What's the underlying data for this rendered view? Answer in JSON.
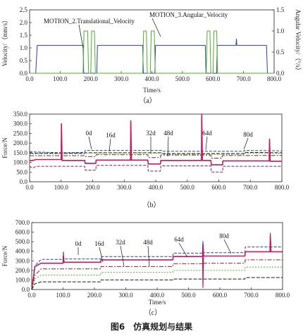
{
  "caption": "图6　仿真规划与结果",
  "chart_data": [
    {
      "type": "line",
      "panel_label": "（a）",
      "xlabel": "Time/s",
      "ylabel": "Velocity/（mm/s）",
      "ylabel_right": "Angular Velocity/（°/s）",
      "xlim": [
        0,
        800
      ],
      "ylim": [
        0,
        2.5
      ],
      "ylim_right": [
        0,
        1.5
      ],
      "xticks": [
        "0.0",
        "100.0",
        "200.0",
        "300.0",
        "400.0",
        "500.0",
        "600.0",
        "700.0",
        "800.0"
      ],
      "yticks": [
        "0.0",
        "0.5",
        "1.0",
        "1.5",
        "2.0",
        "2.5"
      ],
      "yticks_right": [
        "0.0",
        "0.5",
        "1.0",
        "1.5"
      ],
      "annotations": [
        "MOTION_2.Translational_Velocity",
        "MOTION_3.Angular_Velocity"
      ],
      "series": [
        {
          "name": "MOTION_2.Translational_Velocity",
          "color": "#2c3fb0",
          "points": [
            [
              0,
              0
            ],
            [
              20,
              0
            ],
            [
              25,
              1.1
            ],
            [
              175,
              1.1
            ],
            [
              177,
              0
            ],
            [
              220,
              0
            ],
            [
              222,
              1.1
            ],
            [
              370,
              1.1
            ],
            [
              372,
              0
            ],
            [
              410,
              0
            ],
            [
              412,
              1.1
            ],
            [
              575,
              1.1
            ],
            [
              577,
              0
            ],
            [
              612,
              0
            ],
            [
              614,
              1.1
            ],
            [
              675,
              1.1
            ],
            [
              677,
              1.35
            ],
            [
              678,
              1.1
            ],
            [
              775,
              1.1
            ],
            [
              778,
              0
            ],
            [
              800,
              0
            ]
          ]
        },
        {
          "name": "MOTION_3.Angular_Velocity",
          "axis": "right",
          "color": "#4caf2a",
          "points": [
            [
              0,
              0
            ],
            [
              175,
              0
            ],
            [
              178,
              1.0
            ],
            [
              190,
              1.0
            ],
            [
              193,
              0
            ],
            [
              200,
              0
            ],
            [
              203,
              1.0
            ],
            [
              212,
              1.0
            ],
            [
              215,
              0
            ],
            [
              370,
              0
            ],
            [
              373,
              1.0
            ],
            [
              382,
              1.0
            ],
            [
              385,
              0
            ],
            [
              395,
              0
            ],
            [
              398,
              1.0
            ],
            [
              408,
              1.0
            ],
            [
              411,
              0
            ],
            [
              578,
              0
            ],
            [
              581,
              1.0
            ],
            [
              590,
              1.0
            ],
            [
              593,
              0
            ],
            [
              600,
              0
            ],
            [
              603,
              1.0
            ],
            [
              612,
              1.0
            ],
            [
              615,
              0
            ],
            [
              800,
              0
            ]
          ]
        }
      ]
    },
    {
      "type": "line",
      "panel_label": "（b）",
      "xlabel": "",
      "ylabel": "Force/N",
      "xlim": [
        0,
        800
      ],
      "ylim": [
        0,
        350
      ],
      "xticks": [
        "0.0",
        "100.0",
        "200.0",
        "300.0",
        "400.0",
        "500.0",
        "600.0",
        "700.0",
        "800.0"
      ],
      "yticks": [
        "0.0",
        "50.0",
        "100.0",
        "150.0",
        "200.0",
        "250.0",
        "300.0",
        "350.0"
      ],
      "annotations": [
        "0d",
        "16d",
        "32d",
        "48d",
        "64d",
        "80d"
      ],
      "series": [
        {
          "color": "#2c3fb0",
          "dash": "4,2",
          "points": [
            [
              0,
              155
            ],
            [
              100,
              150
            ],
            [
              175,
              152
            ],
            [
              176,
              162
            ],
            [
              420,
              162
            ],
            [
              421,
              158
            ],
            [
              680,
              158
            ],
            [
              681,
              162
            ],
            [
              800,
              160
            ]
          ]
        },
        {
          "color": "#1a1a1a",
          "dash": "5,2",
          "points": [
            [
              0,
              148
            ],
            [
              175,
              148
            ],
            [
              176,
              150
            ],
            [
              420,
              150
            ],
            [
              421,
              146
            ],
            [
              680,
              146
            ],
            [
              681,
              152
            ],
            [
              800,
              150
            ]
          ]
        },
        {
          "color": "#4caf2a",
          "dash": "2,2",
          "points": [
            [
              0,
              145
            ],
            [
              175,
              145
            ],
            [
              176,
              148
            ],
            [
              420,
              148
            ],
            [
              421,
              142
            ],
            [
              680,
              142
            ],
            [
              681,
              148
            ],
            [
              800,
              146
            ]
          ]
        },
        {
          "color": "#8b2020",
          "dash": "6,2,2,2",
          "points": [
            [
              0,
              135
            ],
            [
              175,
              135
            ],
            [
              176,
              130
            ],
            [
              210,
              130
            ],
            [
              211,
              140
            ],
            [
              375,
              140
            ],
            [
              376,
              125
            ],
            [
              415,
              125
            ],
            [
              416,
              138
            ],
            [
              575,
              138
            ],
            [
              576,
              122
            ],
            [
              610,
              122
            ],
            [
              611,
              136
            ],
            [
              800,
              136
            ]
          ]
        },
        {
          "color": "#c21a5e",
          "width": 1.6,
          "points": [
            [
              0,
              110
            ],
            [
              10,
              110
            ],
            [
              20,
              115
            ],
            [
              100,
              115
            ],
            [
              101,
              300
            ],
            [
              103,
              110
            ],
            [
              175,
              110
            ],
            [
              176,
              95
            ],
            [
              210,
              95
            ],
            [
              211,
              112
            ],
            [
              320,
              112
            ],
            [
              321,
              315
            ],
            [
              323,
              112
            ],
            [
              375,
              112
            ],
            [
              376,
              92
            ],
            [
              415,
              92
            ],
            [
              416,
              110
            ],
            [
              545,
              110
            ],
            [
              546,
              350
            ],
            [
              548,
              110
            ],
            [
              575,
              110
            ],
            [
              576,
              88
            ],
            [
              612,
              88
            ],
            [
              613,
              108
            ],
            [
              760,
              108
            ],
            [
              761,
              220
            ],
            [
              763,
              106
            ],
            [
              800,
              106
            ]
          ]
        },
        {
          "color": "#7a1a9a",
          "dash": "4,2",
          "points": [
            [
              0,
              80
            ],
            [
              10,
              70
            ],
            [
              20,
              80
            ],
            [
              175,
              80
            ],
            [
              176,
              60
            ],
            [
              210,
              60
            ],
            [
              211,
              85
            ],
            [
              375,
              85
            ],
            [
              376,
              55
            ],
            [
              415,
              55
            ],
            [
              416,
              82
            ],
            [
              575,
              82
            ],
            [
              576,
              50
            ],
            [
              612,
              50
            ],
            [
              613,
              80
            ],
            [
              800,
              80
            ]
          ]
        }
      ]
    },
    {
      "type": "line",
      "panel_label": "（c）",
      "xlabel": "Time/s",
      "ylabel": "Force/N",
      "xlim": [
        0,
        800
      ],
      "ylim": [
        0,
        700
      ],
      "xticks": [
        "0.0",
        "100.0",
        "200.0",
        "300.0",
        "400.0",
        "500.0",
        "600.0",
        "700.0",
        "800.0"
      ],
      "yticks": [
        "0.0",
        "100.0",
        "200.0",
        "300.0",
        "400.0",
        "500.0",
        "600.0",
        "700.0"
      ],
      "annotations": [
        "0d",
        "16d",
        "32d",
        "48d",
        "64d",
        "80d"
      ],
      "series": [
        {
          "color": "#2c3fb0",
          "dash": "4,2",
          "points": [
            [
              0,
              0
            ],
            [
              10,
              250
            ],
            [
              30,
              315
            ],
            [
              100,
              315
            ],
            [
              101,
              400
            ],
            [
              103,
              320
            ],
            [
              220,
              320
            ],
            [
              221,
              345
            ],
            [
              450,
              345
            ],
            [
              451,
              380
            ],
            [
              545,
              380
            ],
            [
              546,
              505
            ],
            [
              548,
              385
            ],
            [
              680,
              385
            ],
            [
              681,
              445
            ],
            [
              760,
              445
            ],
            [
              761,
              600
            ],
            [
              763,
              445
            ],
            [
              800,
              445
            ]
          ]
        },
        {
          "color": "#c21a5e",
          "width": 1.6,
          "points": [
            [
              0,
              0
            ],
            [
              10,
              240
            ],
            [
              30,
              275
            ],
            [
              100,
              275
            ],
            [
              101,
              360
            ],
            [
              103,
              285
            ],
            [
              220,
              285
            ],
            [
              221,
              310
            ],
            [
              450,
              310
            ],
            [
              451,
              345
            ],
            [
              545,
              345
            ],
            [
              546,
              480
            ],
            [
              548,
              350
            ],
            [
              680,
              350
            ],
            [
              681,
              395
            ],
            [
              760,
              395
            ],
            [
              761,
              560
            ],
            [
              763,
              395
            ],
            [
              800,
              395
            ]
          ]
        },
        {
          "color": "#8b2020",
          "dash": "6,2,2,2",
          "points": [
            [
              0,
              0
            ],
            [
              10,
              150
            ],
            [
              30,
              215
            ],
            [
              220,
              215
            ],
            [
              221,
              240
            ],
            [
              450,
              240
            ],
            [
              451,
              270
            ],
            [
              545,
              270
            ],
            [
              546,
              200
            ],
            [
              548,
              275
            ],
            [
              680,
              275
            ],
            [
              681,
              310
            ],
            [
              800,
              310
            ]
          ]
        },
        {
          "color": "#4caf2a",
          "dash": "2,2",
          "points": [
            [
              0,
              0
            ],
            [
              10,
              110
            ],
            [
              30,
              150
            ],
            [
              220,
              150
            ],
            [
              221,
              180
            ],
            [
              450,
              180
            ],
            [
              451,
              200
            ],
            [
              680,
              200
            ],
            [
              681,
              235
            ],
            [
              800,
              235
            ]
          ]
        },
        {
          "color": "#1a1a1a",
          "dash": "5,2",
          "points": [
            [
              0,
              0
            ],
            [
              10,
              60
            ],
            [
              30,
              80
            ],
            [
              220,
              80
            ],
            [
              221,
              100
            ],
            [
              450,
              100
            ],
            [
              451,
              110
            ],
            [
              680,
              110
            ],
            [
              681,
              125
            ],
            [
              800,
              125
            ]
          ]
        },
        {
          "color": "#c21a5e",
          "width": 1.2,
          "points": [
            [
              545,
              345
            ],
            [
              546,
              20
            ],
            [
              548,
              345
            ]
          ]
        }
      ]
    }
  ]
}
